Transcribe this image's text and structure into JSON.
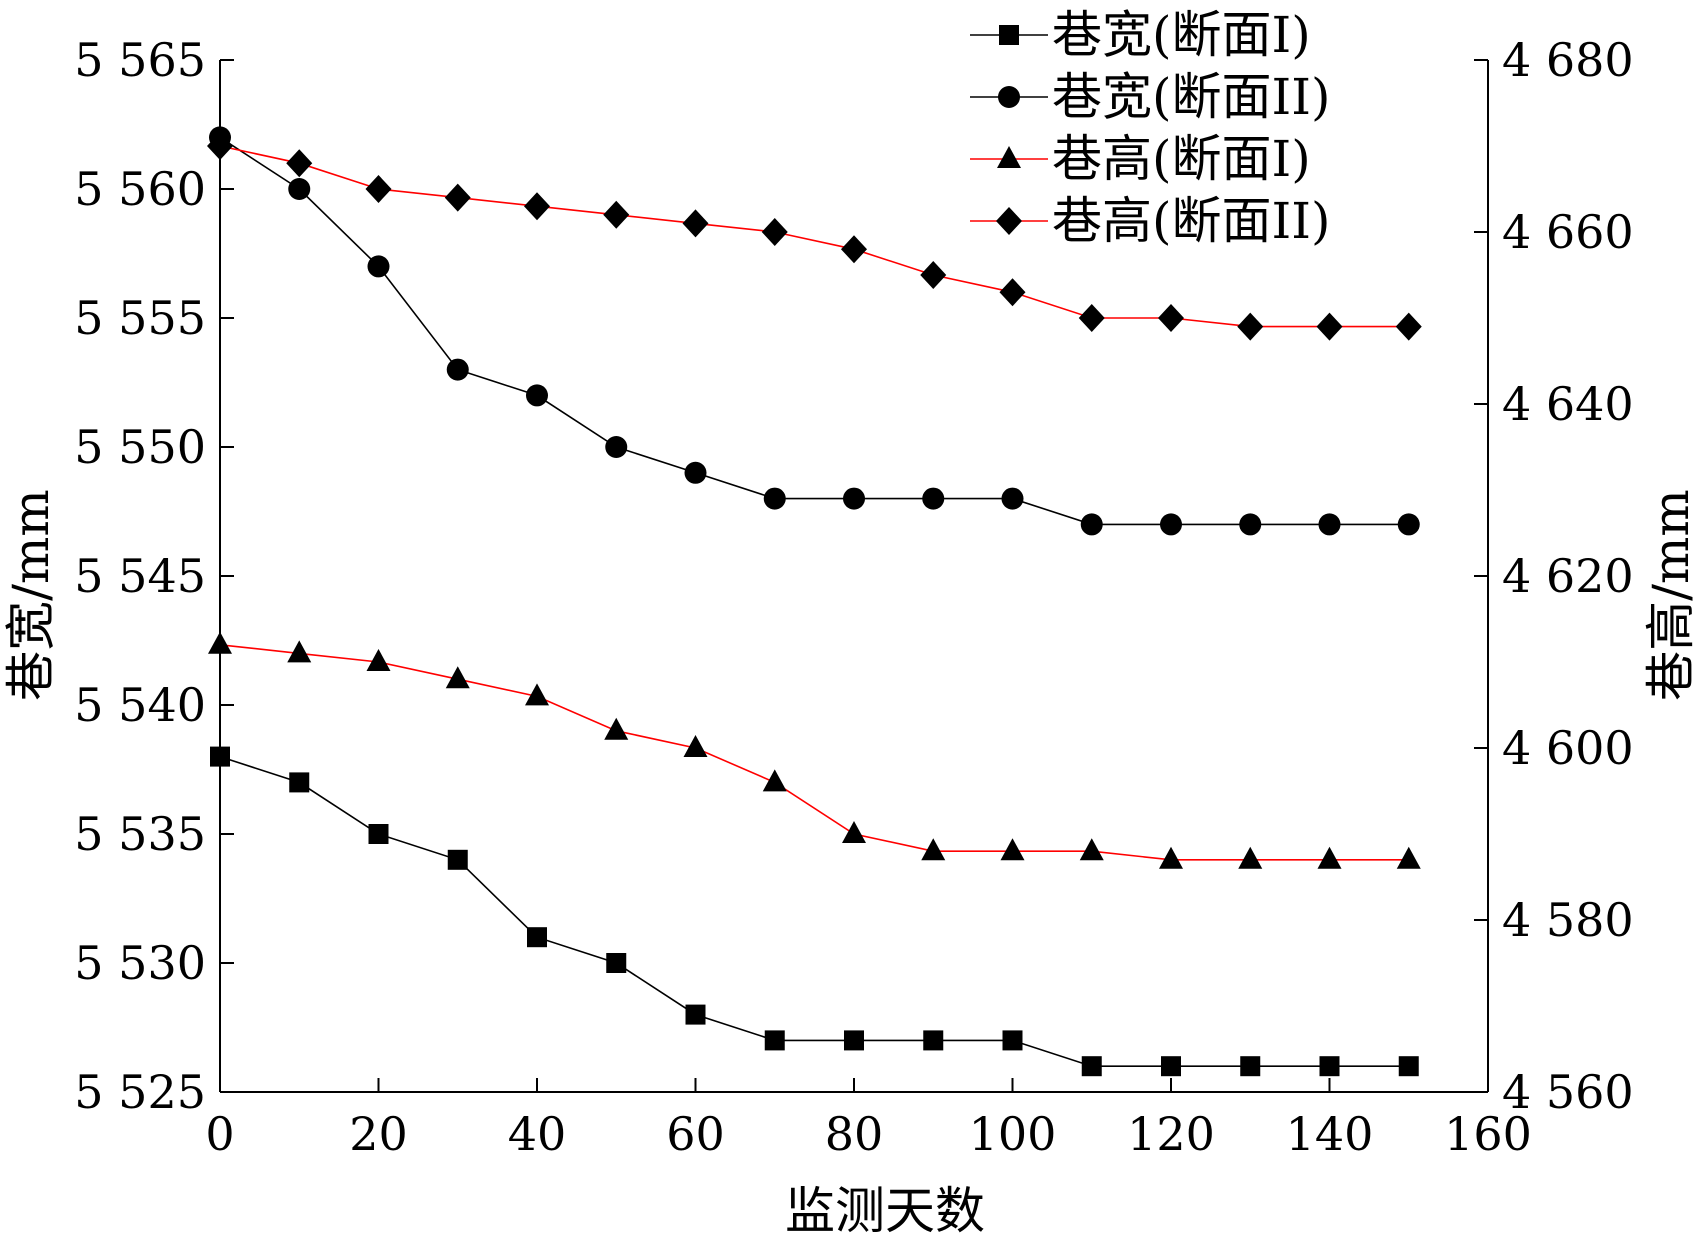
{
  "chart_data": {
    "type": "line",
    "xlabel": "监测天数",
    "ylabel_left": "巷宽/mm",
    "ylabel_right": "巷高/mm",
    "xlim": [
      0,
      160
    ],
    "ylim_left": [
      5525,
      5565
    ],
    "ylim_right": [
      4560,
      4680
    ],
    "x_ticks": [
      0,
      20,
      40,
      60,
      80,
      100,
      120,
      140,
      160
    ],
    "y_left_ticks": [
      5525,
      5530,
      5535,
      5540,
      5545,
      5550,
      5555,
      5560,
      5565
    ],
    "y_right_ticks": [
      4560,
      4580,
      4600,
      4620,
      4640,
      4660,
      4680
    ],
    "x_tick_labels": [
      "0",
      "20",
      "40",
      "60",
      "80",
      "100",
      "120",
      "140",
      "160"
    ],
    "y_left_tick_labels": [
      "5 525",
      "5 530",
      "5 535",
      "5 540",
      "5 545",
      "5 550",
      "5 555",
      "5 560",
      "5 565"
    ],
    "y_right_tick_labels": [
      "4 560",
      "4 580",
      "4 600",
      "4 620",
      "4 640",
      "4 660",
      "4 680"
    ],
    "grid": false,
    "legend_position": "top-right",
    "x": [
      0,
      10,
      20,
      30,
      40,
      50,
      60,
      70,
      80,
      90,
      100,
      110,
      120,
      130,
      140,
      150
    ],
    "series": [
      {
        "name": "巷宽(断面I)",
        "axis": "left",
        "marker": "square",
        "color": "#000000",
        "values": [
          5538,
          5537,
          5535,
          5534,
          5531,
          5530,
          5528,
          5527,
          5527,
          5527,
          5527,
          5526,
          5526,
          5526,
          5526,
          5526
        ]
      },
      {
        "name": "巷宽(断面II)",
        "axis": "left",
        "marker": "circle",
        "color": "#000000",
        "values": [
          5562,
          5560,
          5557,
          5553,
          5552,
          5550,
          5549,
          5548,
          5548,
          5548,
          5548,
          5547,
          5547,
          5547,
          5547,
          5547
        ]
      },
      {
        "name": "巷高(断面I)",
        "axis": "right",
        "marker": "triangle",
        "color": "#ff0000",
        "values": [
          4612,
          4611,
          4610,
          4608,
          4606,
          4602,
          4600,
          4596,
          4590,
          4588,
          4588,
          4588,
          4587,
          4587,
          4587,
          4587
        ]
      },
      {
        "name": "巷高(断面II)",
        "axis": "right",
        "marker": "diamond",
        "color": "#ff0000",
        "values": [
          4670,
          4668,
          4665,
          4664,
          4663,
          4662,
          4661,
          4660,
          4658,
          4655,
          4653,
          4650,
          4650,
          4649,
          4649,
          4649
        ]
      }
    ]
  }
}
